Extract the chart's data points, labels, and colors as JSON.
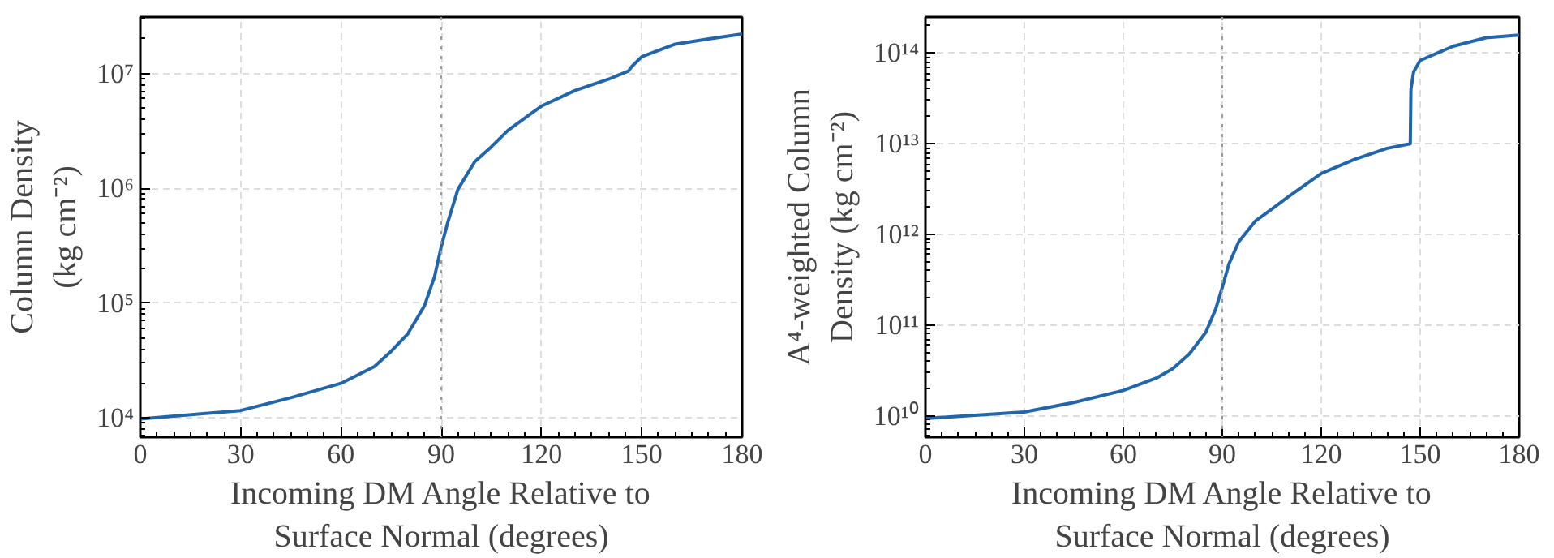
{
  "chart_data": [
    {
      "type": "line",
      "xlabel": "Incoming DM Angle Relative to\nSurface Normal (degrees)",
      "ylabel": "Column Density\n(kg cm⁻²)",
      "log": "y",
      "grid": true,
      "line_style": "solid",
      "marker": "none",
      "x": [
        0,
        30,
        45,
        60,
        70,
        75,
        80,
        85,
        88,
        90,
        92,
        95,
        100,
        105,
        110,
        117,
        120,
        130,
        140,
        146,
        147,
        150,
        160,
        170,
        180
      ],
      "series": [
        {
          "color": "#2166ac",
          "values": [
            9800.0,
            11600.0,
            15000.0,
            20000.0,
            28000.0,
            38000.0,
            54000.0,
            95000.0,
            170000.0,
            310000.0,
            510000.0,
            980000.0,
            1700000.0,
            2300000.0,
            3200000.0,
            4500000.0,
            5200000.0,
            7100000.0,
            8900000.0,
            10500000.0,
            11500000.0,
            14000000.0,
            18000000.0,
            20000000.0,
            22000000.0
          ]
        }
      ],
      "xlim": [
        0,
        180
      ],
      "xticks": [
        0,
        30,
        60,
        90,
        120,
        150,
        180
      ],
      "ylim": [
        6800.0,
        31000000.0
      ],
      "yticks": [
        {
          "value": 10000.0,
          "label": "10⁴"
        },
        {
          "value": 100000.0,
          "label": "10⁵"
        },
        {
          "value": 1000000.0,
          "label": "10⁶"
        },
        {
          "value": 10000000.0,
          "label": "10⁷"
        }
      ],
      "ref_lines": [
        {
          "axis": "x",
          "value": 90,
          "color": "#999999",
          "line_style": "dotted"
        }
      ]
    },
    {
      "type": "line",
      "xlabel": "Incoming DM Angle Relative to\nSurface Normal (degrees)",
      "ylabel": "A⁴-weighted Column\nDensity (kg cm⁻²)",
      "log": "y",
      "grid": true,
      "line_style": "solid",
      "marker": "none",
      "x": [
        0,
        30,
        45,
        60,
        70,
        75,
        80,
        85,
        88,
        90,
        92,
        95,
        100,
        105,
        110,
        120,
        130,
        140,
        147,
        147.2,
        148,
        150,
        160,
        170,
        180
      ],
      "series": [
        {
          "color": "#2166ac",
          "values": [
            9300000000.0,
            11000000000.0,
            14000000000.0,
            19000000000.0,
            26000000000.0,
            33000000000.0,
            48000000000.0,
            83000000000.0,
            150000000000.0,
            260000000000.0,
            470000000000.0,
            830000000000.0,
            1400000000000.0,
            1900000000000.0,
            2600000000000.0,
            4700000000000.0,
            6700000000000.0,
            8900000000000.0,
            10000000000000.0,
            40000000000000.0,
            62000000000000.0,
            83000000000000.0,
            119000000000000.0,
            148000000000000.0,
            158000000000000.0
          ]
        }
      ],
      "xlim": [
        0,
        180
      ],
      "xticks": [
        0,
        30,
        60,
        90,
        120,
        150,
        180
      ],
      "ylim": [
        5800000000.0,
        250000000000000.0
      ],
      "yticks": [
        {
          "value": 10000000000.0,
          "label": "10¹⁰"
        },
        {
          "value": 100000000000.0,
          "label": "10¹¹"
        },
        {
          "value": 1000000000000.0,
          "label": "10¹²"
        },
        {
          "value": 10000000000000.0,
          "label": "10¹³"
        },
        {
          "value": 100000000000000.0,
          "label": "10¹⁴"
        }
      ],
      "ref_lines": [
        {
          "axis": "x",
          "value": 90,
          "color": "#999999",
          "line_style": "dotted"
        }
      ]
    }
  ]
}
